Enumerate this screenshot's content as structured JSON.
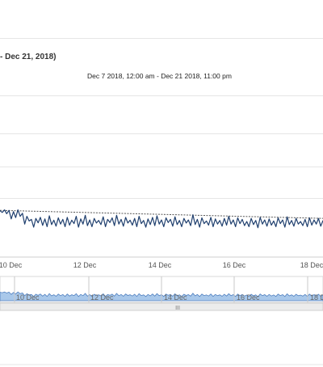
{
  "header": {
    "title": "- Dec 21, 2018)",
    "subtitle": "Dec 7 2018, 12:00 am - Dec 21 2018, 11:00 pm"
  },
  "navigator": {
    "labels": [
      "10 Dec",
      "12 Dec",
      "14 Dec",
      "16 Dec",
      "18 Dec"
    ],
    "handle_glyph": "III"
  },
  "colors": {
    "series": "#1f3f6e",
    "trend": "#555555",
    "grid": "#e6e6e6",
    "navigator_fill": "#a9c8ea",
    "navigator_bg": "#dfe6ee"
  },
  "chart_data": {
    "type": "line",
    "x_ticks": [
      "10 Dec",
      "12 Dec",
      "14 Dec",
      "16 Dec",
      "18 Dec"
    ],
    "xlim": [
      "2018-12-09 12:00",
      "2018-12-18 12:00"
    ],
    "series": [
      {
        "style": "line",
        "values_description": "hourly",
        "points": [
          [
            0,
            0.92
          ],
          [
            0.5,
            0.85
          ],
          [
            1,
            0.95
          ],
          [
            1.5,
            0.8
          ],
          [
            2,
            0.93
          ],
          [
            2.5,
            0.6
          ],
          [
            3,
            0.88
          ],
          [
            3.5,
            0.65
          ],
          [
            4,
            0.95
          ],
          [
            4.5,
            0.7
          ],
          [
            5,
            0.82
          ],
          [
            5.5,
            0.4
          ],
          [
            6,
            0.7
          ],
          [
            6.5,
            0.52
          ],
          [
            7,
            0.58
          ],
          [
            7.5,
            0.28
          ],
          [
            8,
            0.62
          ],
          [
            8.5,
            0.45
          ],
          [
            9,
            0.66
          ],
          [
            9.5,
            0.35
          ],
          [
            10,
            0.6
          ],
          [
            10.5,
            0.3
          ],
          [
            11,
            0.72
          ],
          [
            11.5,
            0.38
          ],
          [
            12,
            0.55
          ],
          [
            12.5,
            0.32
          ],
          [
            13,
            0.64
          ],
          [
            13.5,
            0.4
          ],
          [
            14,
            0.58
          ],
          [
            14.5,
            0.3
          ],
          [
            15,
            0.66
          ],
          [
            15.5,
            0.36
          ],
          [
            16,
            0.55
          ],
          [
            16.5,
            0.42
          ],
          [
            17,
            0.7
          ],
          [
            17.5,
            0.28
          ],
          [
            18,
            0.6
          ],
          [
            18.5,
            0.4
          ],
          [
            19,
            0.74
          ],
          [
            19.5,
            0.34
          ],
          [
            20,
            0.56
          ],
          [
            20.5,
            0.3
          ],
          [
            21,
            0.62
          ],
          [
            21.5,
            0.44
          ],
          [
            22,
            0.54
          ],
          [
            22.5,
            0.38
          ],
          [
            23,
            0.68
          ],
          [
            23.5,
            0.3
          ],
          [
            24,
            0.58
          ],
          [
            24.5,
            0.46
          ],
          [
            25,
            0.64
          ],
          [
            25.5,
            0.34
          ],
          [
            26,
            0.74
          ],
          [
            26.5,
            0.4
          ],
          [
            27,
            0.58
          ],
          [
            27.5,
            0.32
          ],
          [
            28,
            0.66
          ],
          [
            28.5,
            0.44
          ],
          [
            29,
            0.55
          ],
          [
            29.5,
            0.36
          ],
          [
            30,
            0.62
          ],
          [
            30.5,
            0.3
          ],
          [
            31,
            0.7
          ],
          [
            31.5,
            0.42
          ],
          [
            32,
            0.54
          ],
          [
            32.5,
            0.28
          ],
          [
            33,
            0.6
          ],
          [
            33.5,
            0.38
          ],
          [
            34,
            0.66
          ],
          [
            34.5,
            0.34
          ],
          [
            35,
            0.72
          ],
          [
            35.5,
            0.4
          ],
          [
            36,
            0.56
          ],
          [
            36.5,
            0.3
          ],
          [
            37,
            0.64
          ],
          [
            37.5,
            0.46
          ],
          [
            38,
            0.58
          ],
          [
            38.5,
            0.32
          ],
          [
            39,
            0.68
          ],
          [
            39.5,
            0.38
          ],
          [
            40,
            0.54
          ],
          [
            40.5,
            0.3
          ],
          [
            41,
            0.62
          ],
          [
            41.5,
            0.44
          ],
          [
            42,
            0.56
          ],
          [
            42.5,
            0.34
          ],
          [
            43,
            0.76
          ],
          [
            43.5,
            0.38
          ],
          [
            44,
            0.58
          ],
          [
            44.5,
            0.28
          ],
          [
            45,
            0.64
          ],
          [
            45.5,
            0.42
          ],
          [
            46,
            0.52
          ],
          [
            46.5,
            0.36
          ],
          [
            47,
            0.66
          ],
          [
            47.5,
            0.3
          ],
          [
            48,
            0.6
          ],
          [
            48.5,
            0.4
          ],
          [
            49,
            0.54
          ],
          [
            49.5,
            0.32
          ],
          [
            50,
            0.62
          ],
          [
            50.5,
            0.36
          ],
          [
            51,
            0.7
          ],
          [
            51.5,
            0.4
          ],
          [
            52,
            0.56
          ],
          [
            52.5,
            0.3
          ],
          [
            53,
            0.64
          ],
          [
            53.5,
            0.42
          ],
          [
            54,
            0.58
          ],
          [
            54.5,
            0.34
          ],
          [
            55,
            0.5
          ],
          [
            55.5,
            0.3
          ],
          [
            56,
            0.62
          ],
          [
            56.5,
            0.38
          ],
          [
            57,
            0.54
          ],
          [
            57.5,
            0.26
          ],
          [
            58,
            0.66
          ],
          [
            58.5,
            0.4
          ],
          [
            59,
            0.56
          ],
          [
            59.5,
            0.32
          ],
          [
            60,
            0.6
          ],
          [
            60.5,
            0.36
          ],
          [
            61,
            0.52
          ],
          [
            61.5,
            0.3
          ],
          [
            62,
            0.64
          ],
          [
            62.5,
            0.42
          ],
          [
            63,
            0.56
          ],
          [
            63.5,
            0.28
          ],
          [
            64,
            0.68
          ],
          [
            64.5,
            0.38
          ],
          [
            65,
            0.54
          ],
          [
            65.5,
            0.32
          ],
          [
            66,
            0.62
          ],
          [
            66.5,
            0.4
          ],
          [
            67,
            0.5
          ],
          [
            67.5,
            0.34
          ],
          [
            68,
            0.58
          ],
          [
            68.5,
            0.3
          ],
          [
            69,
            0.64
          ],
          [
            69.5,
            0.36
          ],
          [
            70,
            0.56
          ],
          [
            70.5,
            0.4
          ],
          [
            71,
            0.62
          ],
          [
            71.5,
            0.32
          ],
          [
            72,
            0.54
          ]
        ],
        "x_unit_note": "index"
      },
      {
        "style": "dashed-trend",
        "points_start": 0.93,
        "points_end": 0.62
      }
    ],
    "grid": "horizontal",
    "legend": "none"
  }
}
